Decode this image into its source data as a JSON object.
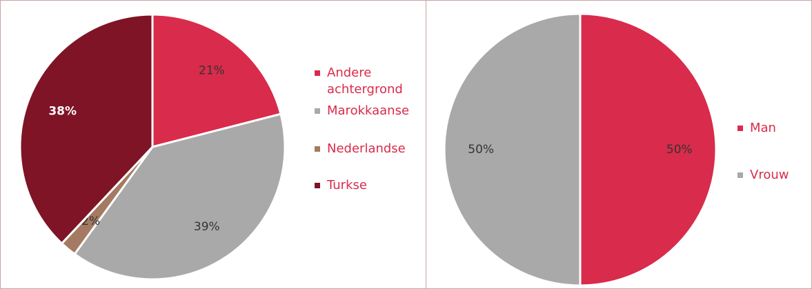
{
  "chart_data": [
    {
      "type": "pie",
      "categories": [
        "Andere achtergrond",
        "Marokkaanse",
        "Nederlandse",
        "Turkse"
      ],
      "values": [
        21,
        39,
        2,
        38
      ],
      "value_labels": [
        "21%",
        "39%",
        "2%",
        "38%"
      ],
      "colors": [
        "#d92b4b",
        "#a9a9a9",
        "#a47a62",
        "#7e1426"
      ],
      "legend": "right"
    },
    {
      "type": "pie",
      "categories": [
        "Man",
        "Vrouw"
      ],
      "values": [
        50,
        50
      ],
      "value_labels": [
        "50%",
        "50%"
      ],
      "colors": [
        "#d92b4b",
        "#a9a9a9"
      ],
      "legend": "right"
    }
  ]
}
